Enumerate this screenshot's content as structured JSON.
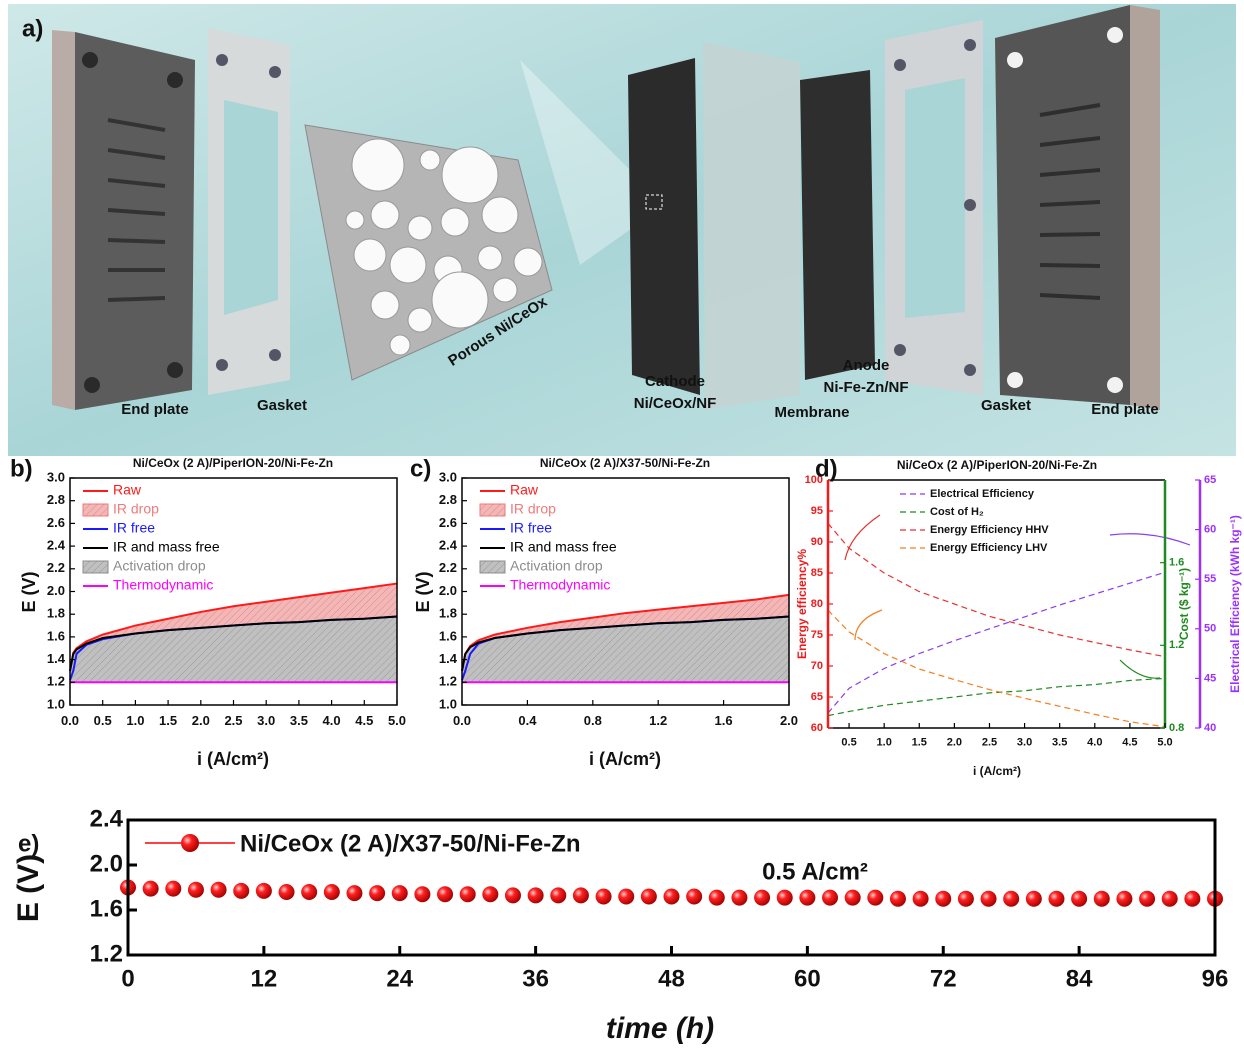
{
  "illustration": {
    "label": "a)",
    "captions": [
      "End plate",
      "Gasket",
      "Porous Ni/CeOx",
      "Cathode",
      "Ni/CeOx/NF",
      "Membrane",
      "Anode",
      "Ni-Fe-Zn/NF",
      "Gasket",
      "End plate"
    ]
  },
  "chart_data": [
    {
      "type": "line",
      "label": "b)",
      "title": "Ni/CeOx (2 A)/PiperION-20/Ni-Fe-Zn",
      "x_label": "i (A/cm²)",
      "y_label": "E (V)",
      "xlim": [
        0,
        5
      ],
      "ylim": [
        1,
        3
      ],
      "xticks": [
        {
          "value": 0,
          "label": "0.0"
        },
        0.5,
        {
          "value": 1,
          "label": "1.0"
        },
        1.5,
        {
          "value": 2,
          "label": "2.0"
        },
        2.5,
        {
          "value": 3,
          "label": "3.0"
        },
        3.5,
        {
          "value": 4,
          "label": "4.0"
        },
        4.5,
        {
          "value": 5,
          "label": "5.0"
        }
      ],
      "yticks": [
        {
          "value": 1,
          "label": "1.0"
        },
        1.2,
        1.4,
        1.6,
        1.8,
        {
          "value": 2,
          "label": "2.0"
        },
        2.2,
        2.4,
        2.6,
        2.8,
        {
          "value": 3,
          "label": "3.0"
        }
      ],
      "x": [
        0,
        0.05,
        0.1,
        0.25,
        0.5,
        1,
        1.5,
        2,
        2.5,
        3,
        3.5,
        4,
        4.5,
        5
      ],
      "series": [
        {
          "name": "Raw",
          "color": "#ff1a1a",
          "values": [
            1.3,
            1.46,
            1.5,
            1.56,
            1.62,
            1.7,
            1.76,
            1.82,
            1.87,
            1.91,
            1.95,
            1.99,
            2.03,
            2.07
          ]
        },
        {
          "name": "IR drop",
          "kind": "area",
          "color": "#f07a7a",
          "values": [
            0,
            0.01,
            0.01,
            0.02,
            0.03,
            0.07,
            0.1,
            0.14,
            0.17,
            0.19,
            0.22,
            0.24,
            0.27,
            0.29
          ]
        },
        {
          "name": "IR free",
          "color": "#1a1aff",
          "values": [
            1.22,
            1.3,
            1.45,
            1.53,
            1.58,
            1.63,
            1.66,
            1.68,
            1.7,
            1.72,
            1.73,
            1.75,
            1.76,
            1.78
          ]
        },
        {
          "name": "IR and mass free",
          "color": "#000000",
          "values": [
            1.3,
            1.45,
            1.49,
            1.54,
            1.59,
            1.63,
            1.66,
            1.68,
            1.7,
            1.72,
            1.73,
            1.75,
            1.76,
            1.78
          ]
        },
        {
          "name": "Activation drop",
          "kind": "area",
          "color": "#8c8c8c",
          "values": [
            0.1,
            0.25,
            0.29,
            0.34,
            0.39,
            0.43,
            0.46,
            0.48,
            0.5,
            0.52,
            0.53,
            0.55,
            0.56,
            0.58
          ]
        },
        {
          "name": "Thermodynamic",
          "color": "#ff00ff",
          "values": [
            1.2,
            1.2,
            1.2,
            1.2,
            1.2,
            1.2,
            1.2,
            1.2,
            1.2,
            1.2,
            1.2,
            1.2,
            1.2,
            1.2
          ]
        }
      ]
    },
    {
      "type": "line",
      "label": "c)",
      "title": "Ni/CeOx (2 A)/X37-50/Ni-Fe-Zn",
      "x_label": "i (A/cm²)",
      "y_label": "E (V)",
      "xlim": [
        0,
        2
      ],
      "ylim": [
        1,
        3
      ],
      "xticks": [
        {
          "value": 0,
          "label": "0.0"
        },
        0.4,
        0.8,
        1.2,
        1.6,
        {
          "value": 2,
          "label": "2.0"
        }
      ],
      "yticks": [
        {
          "value": 1,
          "label": "1.0"
        },
        1.2,
        1.4,
        1.6,
        1.8,
        {
          "value": 2,
          "label": "2.0"
        },
        2.2,
        2.4,
        2.6,
        2.8,
        {
          "value": 3,
          "label": "3.0"
        }
      ],
      "x": [
        0,
        0.02,
        0.05,
        0.1,
        0.2,
        0.4,
        0.6,
        0.8,
        1,
        1.2,
        1.4,
        1.6,
        1.8,
        2
      ],
      "series": [
        {
          "name": "Raw",
          "color": "#ff1a1a",
          "values": [
            1.3,
            1.45,
            1.52,
            1.57,
            1.62,
            1.68,
            1.73,
            1.77,
            1.81,
            1.84,
            1.87,
            1.9,
            1.93,
            1.97
          ]
        },
        {
          "name": "IR drop",
          "kind": "area",
          "color": "#f07a7a",
          "values": [
            0,
            0,
            0.01,
            0.02,
            0.03,
            0.05,
            0.07,
            0.09,
            0.11,
            0.12,
            0.14,
            0.15,
            0.17,
            0.19
          ]
        },
        {
          "name": "IR free",
          "color": "#1a1aff",
          "values": [
            1.22,
            1.3,
            1.45,
            1.54,
            1.59,
            1.63,
            1.66,
            1.68,
            1.7,
            1.72,
            1.73,
            1.75,
            1.76,
            1.78
          ]
        },
        {
          "name": "IR and mass free",
          "color": "#000000",
          "values": [
            1.3,
            1.45,
            1.51,
            1.55,
            1.59,
            1.63,
            1.66,
            1.68,
            1.7,
            1.72,
            1.73,
            1.75,
            1.76,
            1.78
          ]
        },
        {
          "name": "Activation drop",
          "kind": "area",
          "color": "#8c8c8c",
          "values": [
            0.1,
            0.25,
            0.31,
            0.35,
            0.39,
            0.43,
            0.46,
            0.48,
            0.5,
            0.52,
            0.53,
            0.55,
            0.56,
            0.58
          ]
        },
        {
          "name": "Thermodynamic",
          "color": "#ff00ff",
          "values": [
            1.2,
            1.2,
            1.2,
            1.2,
            1.2,
            1.2,
            1.2,
            1.2,
            1.2,
            1.2,
            1.2,
            1.2,
            1.2,
            1.2
          ]
        }
      ]
    },
    {
      "type": "line",
      "label": "d)",
      "title": "Ni/CeOx (2 A)/PiperION-20/Ni-Fe-Zn",
      "dashed": true,
      "x_label": "i (A/cm²)",
      "y_label": "Energy efficiency%",
      "y2_label": "Cost ($ kg⁻¹)",
      "y3_label": "Electrical Efficiency (kWh kg⁻¹)",
      "axis_colors": {
        "y": "#ee1c1c",
        "y2": "#1f8a1f",
        "y3": "#9b30ff"
      },
      "xlim": [
        0.2,
        5
      ],
      "ylim": [
        60,
        100
      ],
      "y2lim": [
        0.8,
        2
      ],
      "y3lim": [
        40,
        65
      ],
      "xticks": [
        0.5,
        {
          "value": 1,
          "label": "1.0"
        },
        1.5,
        {
          "value": 2,
          "label": "2.0"
        },
        2.5,
        {
          "value": 3,
          "label": "3.0"
        },
        3.5,
        {
          "value": 4,
          "label": "4.0"
        },
        4.5,
        {
          "value": 5,
          "label": "5.0"
        }
      ],
      "yticks": [
        60,
        65,
        70,
        75,
        80,
        85,
        90,
        95,
        100
      ],
      "y2ticks": [
        0.8,
        1.2,
        1.6
      ],
      "y3ticks": [
        40,
        45,
        50,
        55,
        60,
        65
      ],
      "x": [
        0.2,
        0.5,
        1,
        1.5,
        2,
        2.5,
        3,
        3.5,
        4,
        4.5,
        5
      ],
      "series": [
        {
          "name": "Electrical Efficiency",
          "color": "#8c3cf0",
          "axis": "y3",
          "values": [
            41.5,
            44,
            46,
            47.5,
            48.8,
            50,
            51.2,
            52.4,
            53.5,
            54.6,
            55.7
          ]
        },
        {
          "name": "Cost of H₂",
          "color": "#1f8a1f",
          "axis": "y2",
          "values": [
            0.86,
            0.88,
            0.91,
            0.93,
            0.95,
            0.97,
            0.98,
            1,
            1.01,
            1.03,
            1.04
          ]
        },
        {
          "name": "Energy Efficiency HHV",
          "color": "#e83030",
          "values": [
            93,
            89,
            85,
            82,
            80,
            78,
            76.5,
            75,
            73.8,
            72.6,
            71.5
          ]
        },
        {
          "name": "Energy Efficiency LHV",
          "color": "#f08020",
          "values": [
            79,
            75.5,
            72,
            69.5,
            67.8,
            66.2,
            64.8,
            63.5,
            62.2,
            61,
            60.2
          ]
        }
      ]
    },
    {
      "type": "scatter",
      "label": "e)",
      "x_label": "time (h)",
      "y_label": "E (V)",
      "annotation": "0.5 A/cm²",
      "xlim": [
        0,
        96
      ],
      "ylim": [
        1.2,
        2.4
      ],
      "xticks": [
        0,
        12,
        24,
        36,
        48,
        60,
        72,
        84,
        96
      ],
      "yticks": [
        1.2,
        1.6,
        {
          "value": 2,
          "label": "2.0"
        },
        2.4
      ],
      "x": [
        0,
        2,
        4,
        6,
        8,
        10,
        12,
        14,
        16,
        18,
        20,
        22,
        24,
        26,
        28,
        30,
        32,
        34,
        36,
        38,
        40,
        42,
        44,
        46,
        48,
        50,
        52,
        54,
        56,
        58,
        60,
        62,
        64,
        66,
        68,
        70,
        72,
        74,
        76,
        78,
        80,
        82,
        84,
        86,
        88,
        90,
        92,
        94,
        96
      ],
      "series": [
        {
          "name": "Ni/CeOx (2 A)/X37-50/Ni-Fe-Zn",
          "color": "#ff0000",
          "values": [
            1.8,
            1.79,
            1.79,
            1.78,
            1.78,
            1.77,
            1.77,
            1.76,
            1.76,
            1.76,
            1.75,
            1.75,
            1.75,
            1.74,
            1.74,
            1.74,
            1.74,
            1.73,
            1.73,
            1.73,
            1.73,
            1.72,
            1.72,
            1.72,
            1.72,
            1.72,
            1.71,
            1.71,
            1.71,
            1.71,
            1.71,
            1.71,
            1.71,
            1.71,
            1.7,
            1.7,
            1.7,
            1.7,
            1.7,
            1.7,
            1.7,
            1.7,
            1.7,
            1.7,
            1.7,
            1.7,
            1.7,
            1.7,
            1.7
          ]
        }
      ]
    }
  ]
}
